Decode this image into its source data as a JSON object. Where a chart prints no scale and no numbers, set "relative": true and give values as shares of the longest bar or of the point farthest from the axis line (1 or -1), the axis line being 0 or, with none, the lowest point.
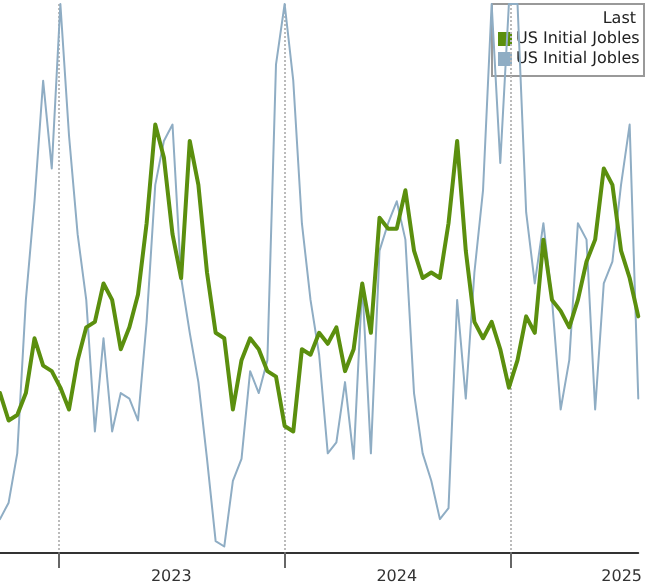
{
  "chart_data": {
    "type": "line",
    "relative": true,
    "legend": "top right",
    "legend_title": "Last",
    "grid": "x",
    "marker": "none",
    "x": [
      "2022-09-27",
      "2022-10-11",
      "2022-10-25",
      "2022-11-08",
      "2022-11-22",
      "2022-12-06",
      "2022-12-20",
      "2023-01-03",
      "2023-01-17",
      "2023-01-31",
      "2023-02-14",
      "2023-02-28",
      "2023-03-14",
      "2023-03-28",
      "2023-04-11",
      "2023-04-25",
      "2023-05-09",
      "2023-05-23",
      "2023-06-06",
      "2023-06-20",
      "2023-07-04",
      "2023-07-18",
      "2023-08-01",
      "2023-08-15",
      "2023-08-29",
      "2023-09-12",
      "2023-09-26",
      "2023-10-10",
      "2023-10-24",
      "2023-11-07",
      "2023-11-21",
      "2023-12-05",
      "2023-12-19",
      "2024-01-02",
      "2024-01-16",
      "2024-01-30",
      "2024-02-13",
      "2024-02-27",
      "2024-03-12",
      "2024-03-26",
      "2024-04-09",
      "2024-04-23",
      "2024-05-07",
      "2024-05-21",
      "2024-06-04",
      "2024-06-18",
      "2024-07-02",
      "2024-07-16",
      "2024-07-30",
      "2024-08-13",
      "2024-08-27",
      "2024-09-10",
      "2024-09-24",
      "2024-10-08",
      "2024-10-22",
      "2024-11-05",
      "2024-11-19",
      "2024-12-03",
      "2024-12-17",
      "2024-12-31",
      "2025-01-14",
      "2025-01-28",
      "2025-02-11",
      "2025-02-25",
      "2025-03-11",
      "2025-03-25",
      "2025-04-08",
      "2025-04-22",
      "2025-05-06",
      "2025-05-20",
      "2025-06-03",
      "2025-06-17",
      "2025-07-01",
      "2025-07-15",
      "2025-07-29"
    ],
    "xlim": [
      "2022-09-27",
      "2025-07-29"
    ],
    "xticks": [
      {
        "value": "2023-01-01",
        "label": null
      },
      {
        "value": "2023-07-02",
        "label": "2023"
      },
      {
        "value": "2024-01-01",
        "label": null
      },
      {
        "value": "2024-07-02",
        "label": "2024"
      },
      {
        "value": "2025-01-01",
        "label": null
      },
      {
        "value": "2025-07-02",
        "label": "2025"
      }
    ],
    "series": [
      {
        "name": "US Initial Jobles",
        "color": "#5b8f0e",
        "values": [
          0.29,
          0.24,
          0.25,
          0.29,
          0.39,
          0.34,
          0.33,
          0.3,
          0.26,
          0.35,
          0.41,
          0.42,
          0.49,
          0.46,
          0.37,
          0.41,
          0.47,
          0.6,
          0.78,
          0.72,
          0.58,
          0.5,
          0.75,
          0.67,
          0.51,
          0.4,
          0.39,
          0.26,
          0.35,
          0.39,
          0.37,
          0.33,
          0.32,
          0.23,
          0.22,
          0.37,
          0.36,
          0.4,
          0.38,
          0.41,
          0.33,
          0.37,
          0.49,
          0.4,
          0.61,
          0.59,
          0.59,
          0.66,
          0.55,
          0.5,
          0.51,
          0.5,
          0.6,
          0.75,
          0.55,
          0.42,
          0.39,
          0.42,
          0.37,
          0.3,
          0.35,
          0.43,
          0.4,
          0.57,
          0.46,
          0.44,
          0.41,
          0.46,
          0.53,
          0.57,
          0.7,
          0.67,
          0.55,
          0.5,
          0.43
        ]
      },
      {
        "name": "US Initial Jobles",
        "color": "#8fadc4",
        "values": [
          0.06,
          0.09,
          0.18,
          0.46,
          0.64,
          0.86,
          0.7,
          1,
          0.76,
          0.58,
          0.46,
          0.22,
          0.39,
          0.22,
          0.29,
          0.28,
          0.24,
          0.42,
          0.67,
          0.75,
          0.78,
          0.5,
          0.4,
          0.31,
          0.17,
          0.02,
          0.01,
          0.13,
          0.17,
          0.33,
          0.29,
          0.35,
          0.89,
          1,
          0.86,
          0.6,
          0.46,
          0.36,
          0.18,
          0.2,
          0.31,
          0.17,
          0.49,
          0.18,
          0.55,
          0.6,
          0.64,
          0.57,
          0.29,
          0.18,
          0.13,
          0.06,
          0.08,
          0.46,
          0.28,
          0.51,
          0.66,
          1,
          0.71,
          1,
          1,
          0.62,
          0.49,
          0.6,
          0.46,
          0.26,
          0.35,
          0.6,
          0.57,
          0.26,
          0.49,
          0.53,
          0.67,
          0.78,
          0.28
        ]
      }
    ]
  }
}
